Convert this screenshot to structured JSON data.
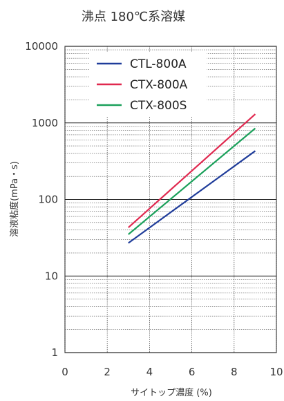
{
  "chart_data": {
    "type": "line",
    "title": "沸点 180℃系溶媒",
    "xlabel": "サイトップ濃度 (%)",
    "ylabel": "溶液粘度(mPa・s)",
    "xlim": [
      0,
      10
    ],
    "ylim": [
      1,
      10000
    ],
    "y_scale": "log",
    "x_ticks": [
      0,
      2,
      4,
      6,
      8,
      10
    ],
    "x_tick_labels": [
      "0",
      "2",
      "4",
      "6",
      "8",
      "10"
    ],
    "y_ticks": [
      1,
      10,
      100,
      1000,
      10000
    ],
    "y_tick_labels": [
      "1",
      "10",
      "100",
      "1000",
      "10000"
    ],
    "grid": true,
    "legend_position": "top-left",
    "series": [
      {
        "name": "CTL-800A",
        "color": "#1f3c9a",
        "x": [
          3,
          9
        ],
        "y": [
          27,
          430
        ]
      },
      {
        "name": "CTX-800A",
        "color": "#e0284f",
        "x": [
          3,
          9
        ],
        "y": [
          43,
          1300
        ]
      },
      {
        "name": "CTX-800S",
        "color": "#1aa05a",
        "x": [
          3,
          9
        ],
        "y": [
          35,
          850
        ]
      }
    ]
  }
}
